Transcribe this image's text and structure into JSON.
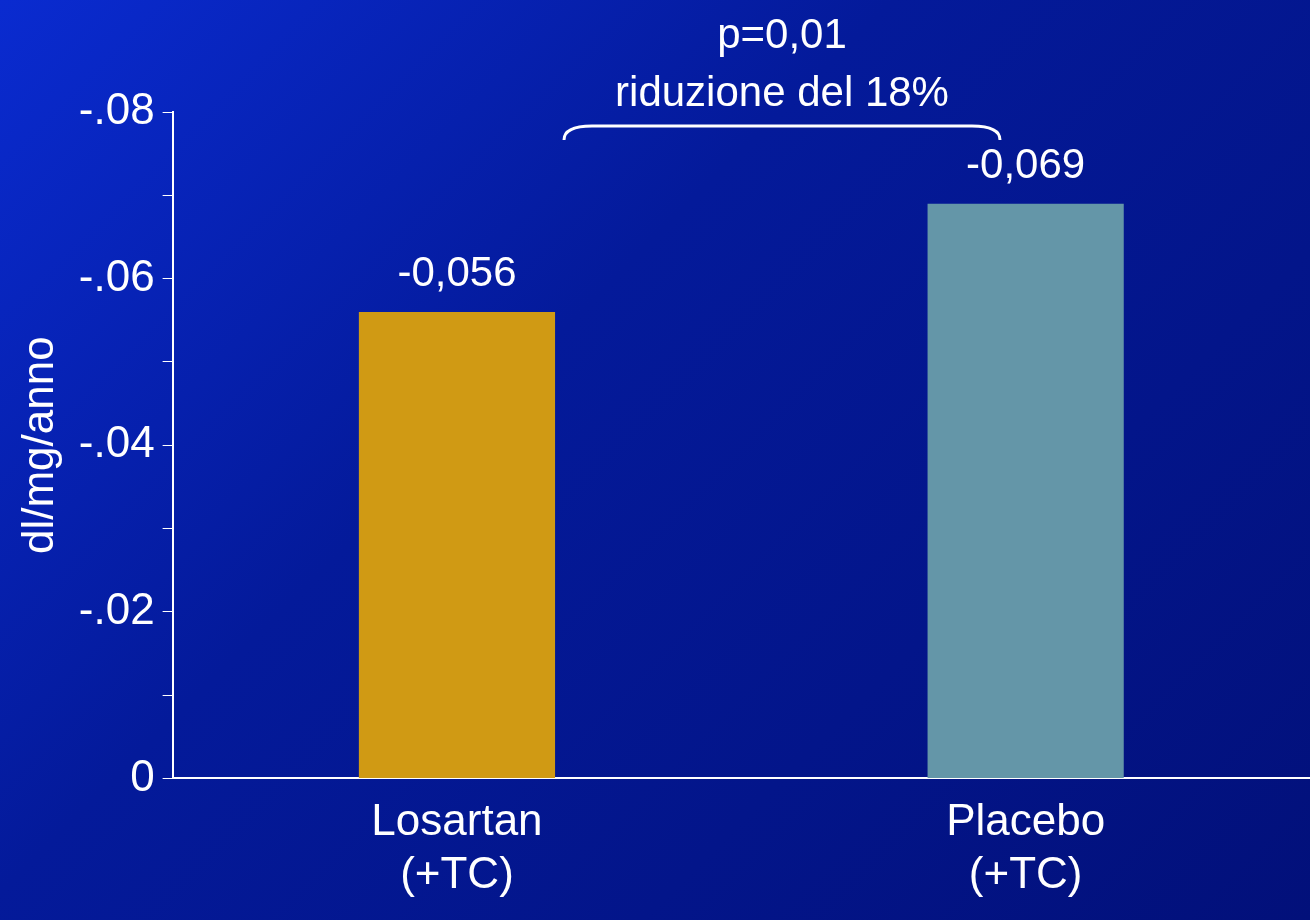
{
  "chart_data": {
    "type": "bar",
    "ylabel": "dl/mg/anno",
    "categories": [
      "Losartan\n(+TC)",
      "Placebo\n(+TC)"
    ],
    "values": [
      -0.056,
      -0.069
    ],
    "colors": [
      "#d09a14",
      "#6496a8"
    ],
    "value_labels": [
      "-0,056",
      "-0,069"
    ],
    "ylim": [
      0,
      -0.08
    ],
    "yticks": [
      {
        "value": -0.08,
        "label": "-.08"
      },
      {
        "value": -0.07,
        "label": null
      },
      {
        "value": -0.06,
        "label": "-.06"
      },
      {
        "value": -0.05,
        "label": null
      },
      {
        "value": -0.04,
        "label": "-.04"
      },
      {
        "value": -0.03,
        "label": null
      },
      {
        "value": -0.02,
        "label": "-.02"
      },
      {
        "value": -0.01,
        "label": null
      },
      0
    ],
    "annotations": [
      "p=0,01",
      "riduzione del 18%"
    ],
    "grid": false,
    "legend": false
  }
}
